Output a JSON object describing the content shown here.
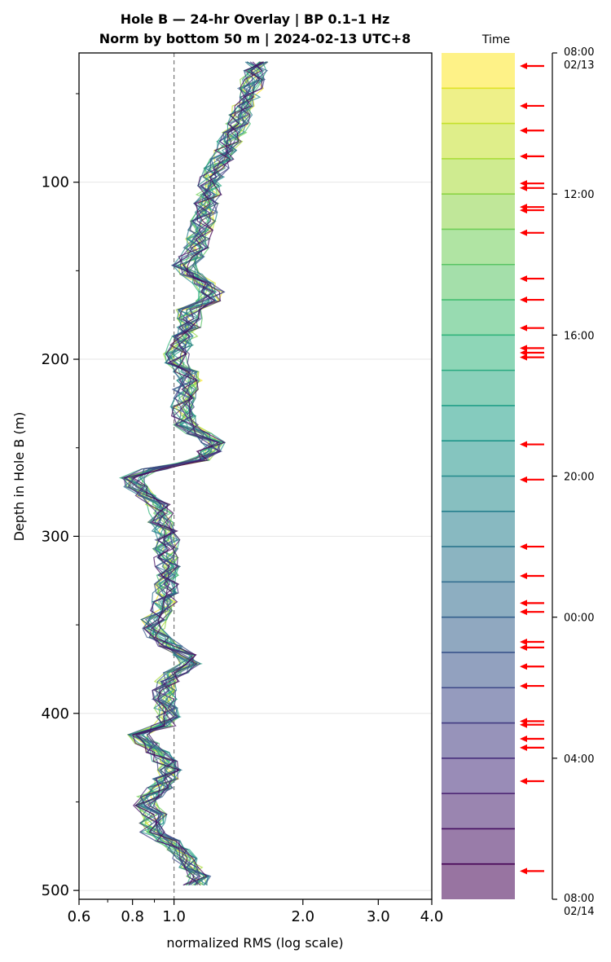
{
  "chart_data": {
    "type": "line",
    "title": "Hole B — 24-hr Overlay  |  BP 0.1–1 Hz",
    "subtitle": "Norm by bottom 50 m  |  2024-02-13 UTC+8",
    "xlabel": "normalized RMS  (log scale)",
    "ylabel": "Depth in Hole B (m)",
    "x_scale": "log",
    "xlim": [
      0.6,
      4.0
    ],
    "ylim": [
      505,
      27
    ],
    "x_ticks": [
      "0.6",
      "0.8",
      "1.0",
      "2.0",
      "3.0",
      "4.0"
    ],
    "x_tick_values": [
      0.6,
      0.8,
      1.0,
      2.0,
      3.0,
      4.0
    ],
    "y_ticks": [
      "100",
      "200",
      "300",
      "400",
      "500"
    ],
    "y_tick_values": [
      100,
      200,
      300,
      400,
      500
    ],
    "reference_line_x": 1.0,
    "grid": "horizontal",
    "series_count": 24,
    "colormap": "viridis (older = yellow, newer = purple)",
    "colorbar": {
      "title": "Time",
      "tick_labels": [
        "08:00\n02/13",
        "12:00",
        "16:00",
        "20:00",
        "00:00",
        "04:00",
        "08:00\n02/14"
      ],
      "tick_hours": [
        0,
        4,
        8,
        12,
        16,
        20,
        24
      ],
      "arrow_hours": [
        0.37,
        1.5,
        2.2,
        2.93,
        3.7,
        3.83,
        4.37,
        4.46,
        5.1,
        6.4,
        7.0,
        7.8,
        8.37,
        8.5,
        8.63,
        11.1,
        12.1,
        14.0,
        14.83,
        15.6,
        15.85,
        16.7,
        16.86,
        17.4,
        17.95,
        18.95,
        19.05,
        19.45,
        19.7,
        20.65,
        23.2
      ],
      "arrow_color": "#ff0000"
    },
    "mean_profile": [
      [
        32,
        1.55
      ],
      [
        40,
        1.54
      ],
      [
        50,
        1.5
      ],
      [
        60,
        1.45
      ],
      [
        70,
        1.4
      ],
      [
        80,
        1.33
      ],
      [
        90,
        1.27
      ],
      [
        100,
        1.22
      ],
      [
        110,
        1.2
      ],
      [
        120,
        1.18
      ],
      [
        130,
        1.15
      ],
      [
        140,
        1.12
      ],
      [
        148,
        1.05
      ],
      [
        158,
        1.18
      ],
      [
        165,
        1.26
      ],
      [
        172,
        1.08
      ],
      [
        180,
        1.1
      ],
      [
        190,
        1.05
      ],
      [
        200,
        1.0
      ],
      [
        210,
        1.1
      ],
      [
        220,
        1.05
      ],
      [
        230,
        1.05
      ],
      [
        240,
        1.08
      ],
      [
        245,
        1.25
      ],
      [
        250,
        1.22
      ],
      [
        256,
        1.2
      ],
      [
        262,
        0.9
      ],
      [
        268,
        0.78
      ],
      [
        275,
        0.85
      ],
      [
        285,
        0.95
      ],
      [
        290,
        0.92
      ],
      [
        300,
        0.97
      ],
      [
        310,
        0.95
      ],
      [
        320,
        0.98
      ],
      [
        330,
        0.96
      ],
      [
        340,
        0.95
      ],
      [
        350,
        0.88
      ],
      [
        360,
        0.95
      ],
      [
        370,
        1.12
      ],
      [
        380,
        0.97
      ],
      [
        390,
        0.95
      ],
      [
        400,
        0.96
      ],
      [
        405,
        1.0
      ],
      [
        412,
        0.82
      ],
      [
        420,
        0.9
      ],
      [
        430,
        0.98
      ],
      [
        440,
        0.95
      ],
      [
        450,
        0.85
      ],
      [
        460,
        0.92
      ],
      [
        465,
        0.85
      ],
      [
        470,
        0.95
      ],
      [
        475,
        1.0
      ],
      [
        480,
        1.05
      ],
      [
        487,
        1.1
      ],
      [
        493,
        1.15
      ],
      [
        498,
        1.12
      ]
    ]
  }
}
